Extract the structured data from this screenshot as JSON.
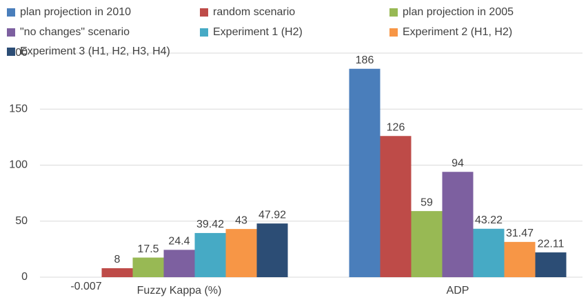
{
  "chart_data": {
    "type": "bar",
    "categories": [
      "Fuzzy Kappa (%)",
      "ADP"
    ],
    "series": [
      {
        "name": "plan projection in 2010",
        "color": "#4a7ebb",
        "values": [
          -0.007,
          186
        ]
      },
      {
        "name": "random scenario",
        "color": "#be4b48",
        "values": [
          8,
          126
        ]
      },
      {
        "name": "plan projection in 2005",
        "color": "#98b954",
        "values": [
          17.5,
          59
        ]
      },
      {
        "name": "\"no changes\" scenario",
        "color": "#7d60a0",
        "values": [
          24.4,
          94
        ]
      },
      {
        "name": "Experiment 1 (H2)",
        "color": "#46aac5",
        "values": [
          39.42,
          43.22
        ]
      },
      {
        "name": "Experiment 2 (H1, H2)",
        "color": "#f79646",
        "values": [
          43,
          31.47
        ]
      },
      {
        "name": "Experiment 3 (H1, H2, H3, H4)",
        "color": "#2c4d75",
        "values": [
          47.92,
          22.11
        ]
      }
    ],
    "ylim": [
      0,
      200
    ],
    "yticks": [
      0,
      50,
      100,
      150,
      200
    ],
    "grid": true,
    "legend": "top"
  }
}
